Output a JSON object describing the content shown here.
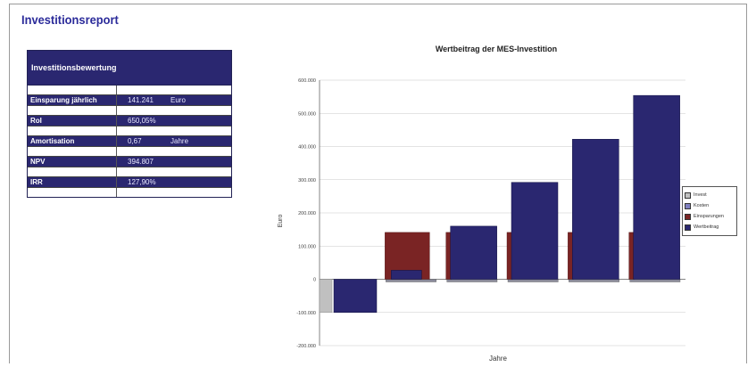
{
  "report": {
    "title": "Investitionsreport"
  },
  "table": {
    "header": "Investitionsbewertung",
    "rows": [
      {
        "label": "Einsparung jährlich",
        "value": "141.241",
        "unit": "Euro"
      },
      {
        "label": "RoI",
        "value": "650,05%",
        "unit": ""
      },
      {
        "label": "Amortisation",
        "value": "0,67",
        "unit": "Jahre"
      },
      {
        "label": "NPV",
        "value": "394.807",
        "unit": ""
      },
      {
        "label": "IRR",
        "value": "127,90%",
        "unit": ""
      }
    ]
  },
  "colors": {
    "invest": "#c0c0c0",
    "kosten": "#7f7fbf",
    "einsparungen": "#7a2424",
    "wertbeitrag": "#2a2770"
  },
  "chart_data": {
    "type": "bar",
    "title": "Wertbeitrag der MES-Investition",
    "xlabel": "Jahre",
    "ylabel": "Euro",
    "ylim": [
      -200000,
      600000
    ],
    "yticks": [
      "-200.000",
      "-100.000",
      "0",
      "100.000",
      "200.000",
      "300.000",
      "400.000",
      "500.000",
      "600.000"
    ],
    "categories": [
      "",
      "",
      "",
      "",
      "",
      ""
    ],
    "series": [
      {
        "name": "Invest",
        "values": [
          -100000,
          0,
          0,
          0,
          0,
          0
        ]
      },
      {
        "name": "Kosten",
        "values": [
          0,
          -8000,
          -8000,
          -8000,
          -8000,
          -8000
        ]
      },
      {
        "name": "Einsparungen",
        "values": [
          0,
          141241,
          141241,
          141241,
          141241,
          141241
        ]
      },
      {
        "name": "Wertbeitrag",
        "values": [
          -100000,
          27000,
          160000,
          292000,
          422000,
          554000
        ]
      }
    ],
    "legend": "right"
  }
}
